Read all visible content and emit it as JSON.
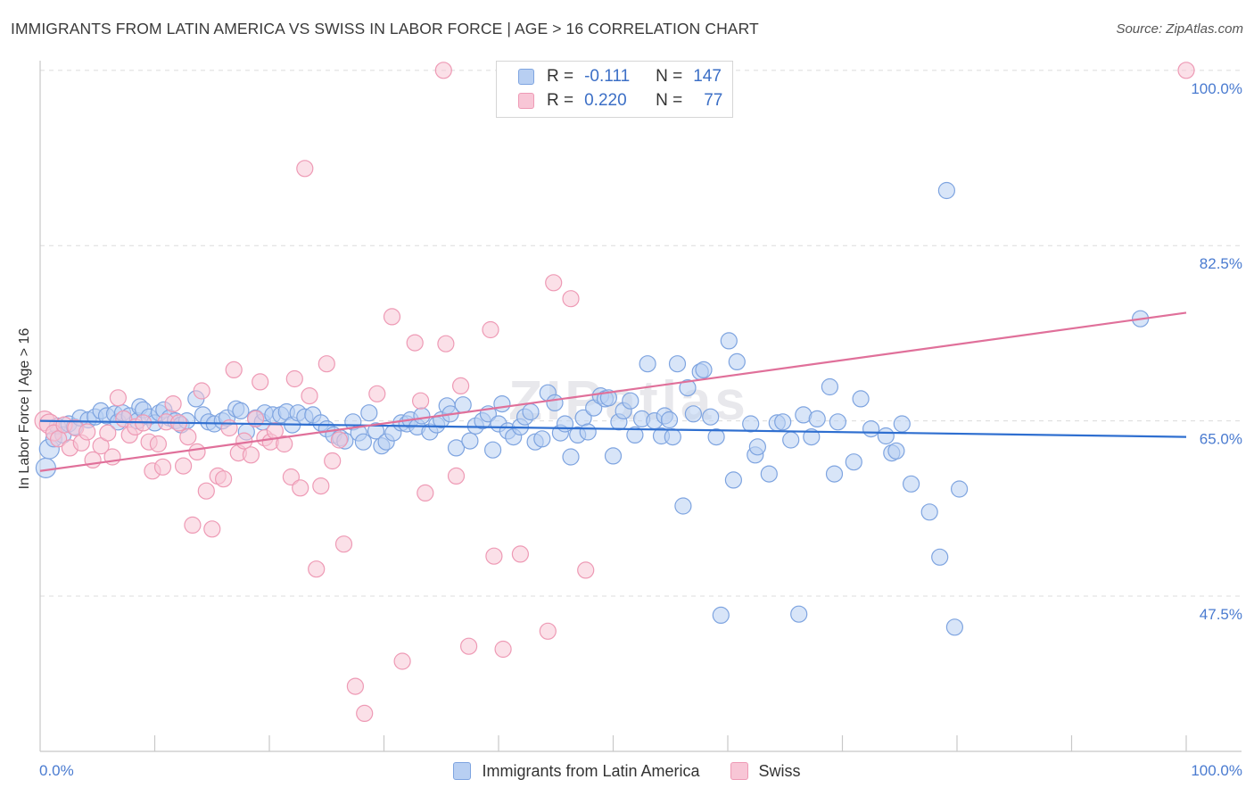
{
  "header": {
    "title": "IMMIGRANTS FROM LATIN AMERICA VS SWISS IN LABOR FORCE | AGE > 16 CORRELATION CHART",
    "source": "Source: ZipAtlas.com"
  },
  "legend_top": {
    "rows": [
      {
        "r_label": "R =",
        "r_value": "-0.111",
        "n_label": "N =",
        "n_value": "147"
      },
      {
        "r_label": "R =",
        "r_value": "0.220",
        "n_label": "N =",
        "n_value": "77"
      }
    ]
  },
  "colors": {
    "series1_fill": "#b8cff2",
    "series1_stroke": "#7ea4e0",
    "series1_line": "#2f6fd0",
    "series2_fill": "#f8c6d6",
    "series2_stroke": "#ee9ab5",
    "series2_line": "#e0709a",
    "axis_text": "#4a7bd0",
    "grid": "#dcdcdc"
  },
  "chart_data": {
    "type": "scatter",
    "title": "IMMIGRANTS FROM LATIN AMERICA VS SWISS IN LABOR FORCE | AGE > 16 CORRELATION CHART",
    "xlabel": "",
    "ylabel": "In Labor Force | Age > 16",
    "xlim": [
      0,
      100
    ],
    "ylim": [
      32.0,
      101.5
    ],
    "x_tick_labels": [
      "0.0%",
      "100.0%"
    ],
    "y_ticks": [
      47.5,
      65.0,
      82.5,
      100.0
    ],
    "y_tick_labels": [
      "47.5%",
      "65.0%",
      "82.5%",
      "100.0%"
    ],
    "grid": true,
    "legend_position": "bottom",
    "series": [
      {
        "name": "Immigrants from Latin America",
        "trend": [
          [
            0,
            65.0
          ],
          [
            100,
            63.4
          ]
        ],
        "points": [
          [
            0.5,
            60.3
          ],
          [
            0.8,
            62.2
          ],
          [
            1.2,
            63.2
          ],
          [
            1.5,
            64.5
          ],
          [
            2.0,
            63.6
          ],
          [
            2.5,
            64.7
          ],
          [
            3.0,
            64.4
          ],
          [
            3.5,
            65.3
          ],
          [
            4.2,
            65.1
          ],
          [
            4.8,
            65.4
          ],
          [
            5.3,
            66.0
          ],
          [
            5.8,
            65.5
          ],
          [
            6.5,
            65.7
          ],
          [
            6.8,
            64.9
          ],
          [
            7.2,
            65.8
          ],
          [
            7.8,
            65.5
          ],
          [
            8.5,
            65.0
          ],
          [
            8.7,
            66.4
          ],
          [
            9.0,
            66.1
          ],
          [
            9.5,
            65.4
          ],
          [
            10.0,
            64.8
          ],
          [
            10.4,
            65.8
          ],
          [
            10.8,
            66.1
          ],
          [
            11.3,
            65.3
          ],
          [
            11.8,
            65.0
          ],
          [
            12.3,
            64.6
          ],
          [
            12.8,
            65.0
          ],
          [
            13.6,
            67.2
          ],
          [
            14.2,
            65.6
          ],
          [
            14.7,
            64.9
          ],
          [
            15.2,
            64.7
          ],
          [
            15.9,
            65.0
          ],
          [
            16.3,
            65.3
          ],
          [
            17.1,
            66.2
          ],
          [
            17.5,
            66.0
          ],
          [
            18.0,
            63.9
          ],
          [
            18.8,
            65.3
          ],
          [
            19.4,
            64.9
          ],
          [
            19.6,
            65.8
          ],
          [
            20.3,
            65.6
          ],
          [
            21.0,
            65.6
          ],
          [
            21.5,
            65.9
          ],
          [
            22.0,
            64.6
          ],
          [
            22.5,
            65.8
          ],
          [
            23.1,
            65.4
          ],
          [
            23.8,
            65.6
          ],
          [
            24.5,
            64.8
          ],
          [
            25.0,
            64.2
          ],
          [
            25.6,
            63.6
          ],
          [
            26.2,
            63.3
          ],
          [
            26.6,
            63.0
          ],
          [
            27.3,
            64.9
          ],
          [
            27.8,
            63.8
          ],
          [
            28.2,
            62.9
          ],
          [
            28.7,
            65.8
          ],
          [
            29.3,
            64.0
          ],
          [
            29.8,
            62.5
          ],
          [
            30.2,
            62.9
          ],
          [
            30.8,
            63.8
          ],
          [
            31.5,
            64.8
          ],
          [
            32.0,
            64.7
          ],
          [
            32.3,
            65.1
          ],
          [
            32.9,
            64.4
          ],
          [
            33.3,
            65.5
          ],
          [
            34.0,
            63.9
          ],
          [
            34.6,
            64.6
          ],
          [
            35.0,
            65.1
          ],
          [
            35.5,
            66.5
          ],
          [
            35.8,
            65.7
          ],
          [
            36.3,
            62.3
          ],
          [
            36.9,
            66.6
          ],
          [
            37.5,
            63.0
          ],
          [
            38.0,
            64.5
          ],
          [
            38.6,
            65.0
          ],
          [
            39.1,
            65.7
          ],
          [
            39.5,
            62.1
          ],
          [
            40.0,
            64.7
          ],
          [
            40.3,
            66.7
          ],
          [
            40.8,
            64.0
          ],
          [
            41.3,
            63.4
          ],
          [
            41.9,
            64.4
          ],
          [
            42.3,
            65.4
          ],
          [
            42.8,
            65.9
          ],
          [
            43.2,
            62.9
          ],
          [
            43.8,
            63.2
          ],
          [
            44.3,
            67.8
          ],
          [
            44.9,
            66.8
          ],
          [
            45.4,
            63.8
          ],
          [
            45.8,
            64.7
          ],
          [
            46.3,
            61.4
          ],
          [
            46.9,
            63.6
          ],
          [
            47.4,
            65.3
          ],
          [
            47.8,
            63.9
          ],
          [
            48.3,
            66.3
          ],
          [
            48.9,
            67.5
          ],
          [
            49.3,
            67.2
          ],
          [
            49.6,
            67.3
          ],
          [
            50.0,
            61.5
          ],
          [
            50.5,
            64.9
          ],
          [
            50.9,
            66.0
          ],
          [
            51.5,
            67.0
          ],
          [
            51.9,
            63.6
          ],
          [
            52.5,
            65.2
          ],
          [
            53.0,
            70.7
          ],
          [
            53.6,
            65.0
          ],
          [
            54.2,
            63.5
          ],
          [
            54.5,
            65.5
          ],
          [
            54.9,
            65.1
          ],
          [
            55.2,
            63.4
          ],
          [
            55.6,
            70.7
          ],
          [
            56.1,
            56.5
          ],
          [
            56.5,
            68.3
          ],
          [
            57.0,
            65.7
          ],
          [
            57.6,
            69.9
          ],
          [
            57.9,
            70.1
          ],
          [
            58.5,
            65.4
          ],
          [
            59.0,
            63.4
          ],
          [
            59.4,
            45.6
          ],
          [
            60.1,
            73.0
          ],
          [
            60.5,
            59.1
          ],
          [
            60.8,
            70.9
          ],
          [
            62.0,
            64.7
          ],
          [
            62.4,
            61.6
          ],
          [
            62.6,
            62.4
          ],
          [
            63.6,
            59.7
          ],
          [
            64.3,
            64.8
          ],
          [
            64.8,
            64.9
          ],
          [
            65.5,
            63.1
          ],
          [
            66.2,
            45.7
          ],
          [
            66.6,
            65.6
          ],
          [
            67.3,
            63.4
          ],
          [
            67.8,
            65.2
          ],
          [
            68.9,
            68.4
          ],
          [
            69.3,
            59.7
          ],
          [
            69.6,
            64.9
          ],
          [
            71.0,
            60.9
          ],
          [
            71.6,
            67.2
          ],
          [
            72.5,
            64.2
          ],
          [
            73.8,
            63.5
          ],
          [
            74.3,
            61.8
          ],
          [
            74.7,
            62.0
          ],
          [
            75.2,
            64.7
          ],
          [
            76.0,
            58.7
          ],
          [
            77.6,
            55.9
          ],
          [
            78.5,
            51.4
          ],
          [
            79.1,
            88.0
          ],
          [
            79.8,
            44.4
          ],
          [
            80.2,
            58.2
          ],
          [
            96.0,
            75.2
          ]
        ]
      },
      {
        "name": "Swiss",
        "trend": [
          [
            0,
            60.0
          ],
          [
            100,
            75.8
          ]
        ],
        "points": [
          [
            0.4,
            65.0
          ],
          [
            0.8,
            64.7
          ],
          [
            1.2,
            63.8
          ],
          [
            1.6,
            63.2
          ],
          [
            2.1,
            64.6
          ],
          [
            2.6,
            62.3
          ],
          [
            3.1,
            64.3
          ],
          [
            3.6,
            62.8
          ],
          [
            4.1,
            63.9
          ],
          [
            4.6,
            61.1
          ],
          [
            5.3,
            62.5
          ],
          [
            5.9,
            63.8
          ],
          [
            6.3,
            61.4
          ],
          [
            6.8,
            67.3
          ],
          [
            7.3,
            65.2
          ],
          [
            7.8,
            63.6
          ],
          [
            8.3,
            64.4
          ],
          [
            9.0,
            64.8
          ],
          [
            9.5,
            62.9
          ],
          [
            9.8,
            60.0
          ],
          [
            10.3,
            62.7
          ],
          [
            10.7,
            60.4
          ],
          [
            11.0,
            64.9
          ],
          [
            11.6,
            66.7
          ],
          [
            12.1,
            64.8
          ],
          [
            12.5,
            60.5
          ],
          [
            12.9,
            63.4
          ],
          [
            13.3,
            54.6
          ],
          [
            13.7,
            61.9
          ],
          [
            14.1,
            68.0
          ],
          [
            14.5,
            58.0
          ],
          [
            15.0,
            54.2
          ],
          [
            15.5,
            59.5
          ],
          [
            16.0,
            59.2
          ],
          [
            16.5,
            64.3
          ],
          [
            16.9,
            70.1
          ],
          [
            17.3,
            61.8
          ],
          [
            17.8,
            63.0
          ],
          [
            18.4,
            61.6
          ],
          [
            18.8,
            65.2
          ],
          [
            19.2,
            68.9
          ],
          [
            19.6,
            63.3
          ],
          [
            20.1,
            62.9
          ],
          [
            20.5,
            64.0
          ],
          [
            21.3,
            62.7
          ],
          [
            21.9,
            59.4
          ],
          [
            22.2,
            69.2
          ],
          [
            22.7,
            58.3
          ],
          [
            23.1,
            90.2
          ],
          [
            23.5,
            67.5
          ],
          [
            24.1,
            50.2
          ],
          [
            24.5,
            58.5
          ],
          [
            25.0,
            70.7
          ],
          [
            25.5,
            61.0
          ],
          [
            26.1,
            63.1
          ],
          [
            26.5,
            52.7
          ],
          [
            27.5,
            38.5
          ],
          [
            28.3,
            35.8
          ],
          [
            29.4,
            67.7
          ],
          [
            30.7,
            75.4
          ],
          [
            31.6,
            41.0
          ],
          [
            32.7,
            72.8
          ],
          [
            33.2,
            67.0
          ],
          [
            33.6,
            57.8
          ],
          [
            35.2,
            100.0
          ],
          [
            35.4,
            72.7
          ],
          [
            36.3,
            59.5
          ],
          [
            36.7,
            68.5
          ],
          [
            37.4,
            42.5
          ],
          [
            39.3,
            74.1
          ],
          [
            39.6,
            51.5
          ],
          [
            40.4,
            42.2
          ],
          [
            41.9,
            51.7
          ],
          [
            44.3,
            44.0
          ],
          [
            44.8,
            78.8
          ],
          [
            46.3,
            77.2
          ],
          [
            47.6,
            50.1
          ],
          [
            100.0,
            100.0
          ]
        ]
      }
    ]
  },
  "legend_bottom": {
    "items": [
      "Immigrants from Latin America",
      "Swiss"
    ]
  },
  "watermark": "ZIPatlas"
}
